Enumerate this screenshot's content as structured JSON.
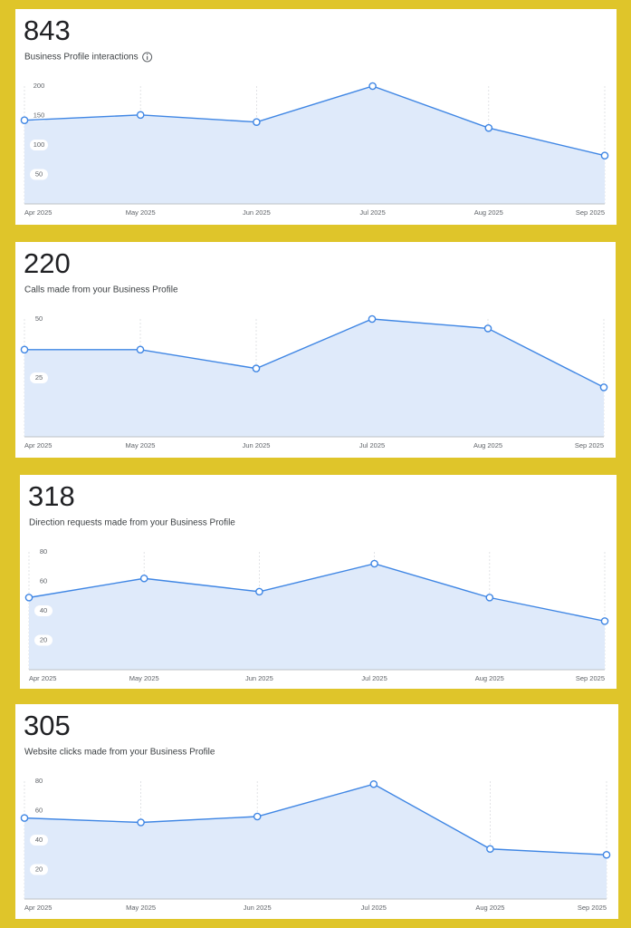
{
  "chart_data": [
    {
      "type": "area",
      "total": 843,
      "subtitle": "Business Profile interactions",
      "info_icon": true,
      "categories": [
        "Apr 2025",
        "May 2025",
        "Jun 2025",
        "Jul 2025",
        "Aug 2025",
        "Sep 2025"
      ],
      "values": [
        142,
        151,
        139,
        200,
        129,
        82
      ],
      "color": "#3f86e4",
      "ylim": [
        0,
        200
      ],
      "yticks": [
        50,
        100,
        150,
        200
      ],
      "grid": true
    },
    {
      "type": "area",
      "total": 220,
      "subtitle": "Calls made from your Business Profile",
      "categories": [
        "Apr 2025",
        "May 2025",
        "Jun 2025",
        "Jul 2025",
        "Aug 2025",
        "Sep 2025"
      ],
      "values": [
        37,
        37,
        29,
        50,
        46,
        21
      ],
      "color": "#3f86e4",
      "ylim": [
        0,
        50
      ],
      "yticks": [
        25,
        50
      ],
      "grid": true
    },
    {
      "type": "area",
      "total": 318,
      "subtitle": "Direction requests made from your Business Profile",
      "categories": [
        "Apr 2025",
        "May 2025",
        "Jun 2025",
        "Jul 2025",
        "Aug 2025",
        "Sep 2025"
      ],
      "values": [
        49,
        62,
        53,
        72,
        49,
        33
      ],
      "color": "#3f86e4",
      "ylim": [
        0,
        80
      ],
      "yticks": [
        20,
        40,
        60,
        80
      ],
      "grid": true
    },
    {
      "type": "area",
      "total": 305,
      "subtitle": "Website clicks made from your Business Profile",
      "categories": [
        "Apr 2025",
        "May 2025",
        "Jun 2025",
        "Jul 2025",
        "Aug 2025",
        "Sep 2025"
      ],
      "values": [
        55,
        52,
        56,
        78,
        34,
        30
      ],
      "color": "#3f86e4",
      "ylim": [
        0,
        80
      ],
      "yticks": [
        20,
        40,
        60,
        80
      ],
      "grid": true
    }
  ]
}
